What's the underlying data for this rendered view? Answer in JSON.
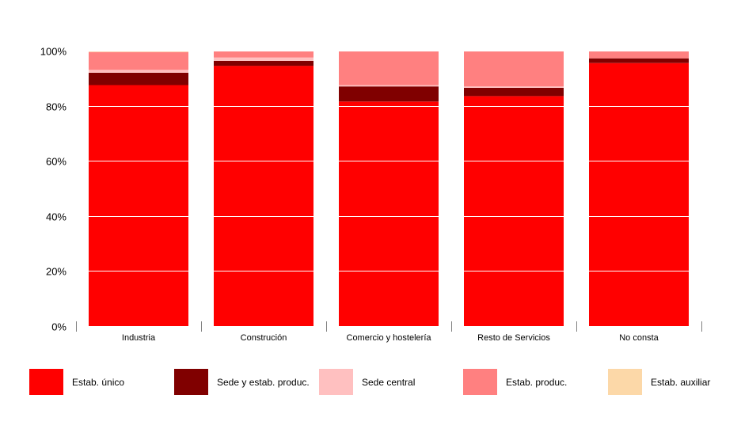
{
  "chart_data": {
    "type": "bar",
    "stacked": true,
    "categories": [
      "Industria",
      "Construción",
      "Comercio y hostelería",
      "Resto de Servicios",
      "No consta"
    ],
    "series": [
      {
        "name": "Estab. único",
        "color": "#ff0000",
        "values": [
          87.5,
          94.5,
          81.5,
          83.5,
          95.5
        ]
      },
      {
        "name": "Sede y estab. produc.",
        "color": "#800000",
        "values": [
          4.5,
          1.8,
          5.5,
          3.0,
          1.7
        ]
      },
      {
        "name": "Sede central",
        "color": "#ffc0c0",
        "values": [
          1.0,
          1.2,
          0.5,
          0.5,
          0.0
        ]
      },
      {
        "name": "Estab. produc.",
        "color": "#ff8080",
        "values": [
          6.5,
          2.3,
          12.2,
          13.0,
          2.8
        ]
      },
      {
        "name": "Estab. auxiliar",
        "color": "#fcd8a8",
        "values": [
          0.5,
          0.2,
          0.3,
          0.0,
          0.0
        ]
      }
    ],
    "yticks": [
      "0%",
      "20%",
      "40%",
      "60%",
      "80%",
      "100%"
    ],
    "ylim": [
      0,
      100
    ],
    "grid": true,
    "legend_position": "bottom",
    "title": "",
    "xlabel": "",
    "ylabel": ""
  }
}
